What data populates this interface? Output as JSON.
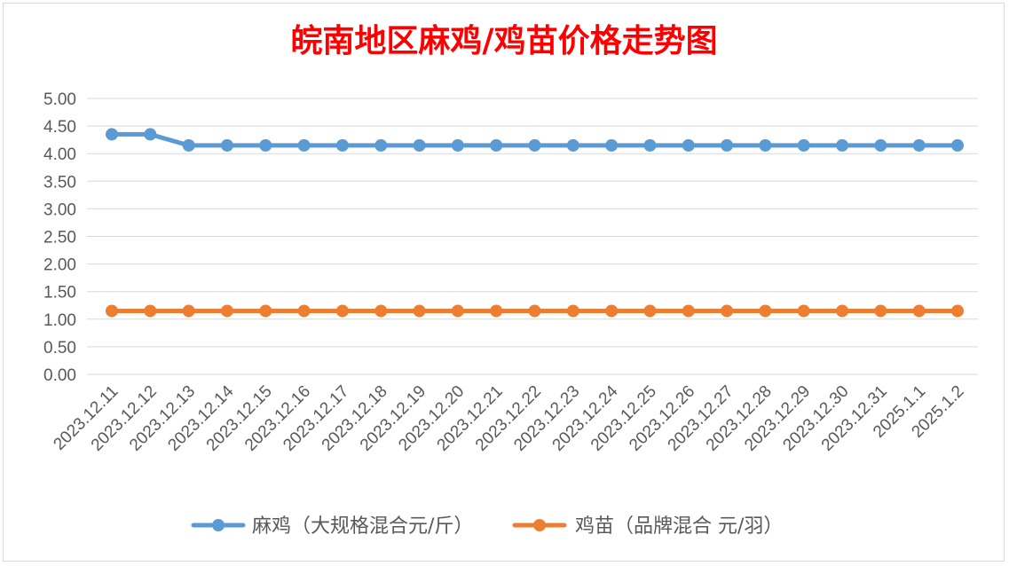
{
  "chart_data": {
    "type": "line",
    "title": "皖南地区麻鸡/鸡苗价格走势图",
    "categories": [
      "2023.12.11",
      "2023.12.12",
      "2023.12.13",
      "2023.12.14",
      "2023.12.15",
      "2023.12.16",
      "2023.12.17",
      "2023.12.18",
      "2023.12.19",
      "2023.12.20",
      "2023.12.21",
      "2023.12.22",
      "2023.12.23",
      "2023.12.24",
      "2023.12.25",
      "2023.12.26",
      "2023.12.27",
      "2023.12.28",
      "2023.12.29",
      "2023.12.30",
      "2023.12.31",
      "2025.1.1",
      "2025.1.2"
    ],
    "series": [
      {
        "name": "麻鸡（大规格混合元/斤）",
        "color": "#5b9bd5",
        "values": [
          4.35,
          4.35,
          4.15,
          4.15,
          4.15,
          4.15,
          4.15,
          4.15,
          4.15,
          4.15,
          4.15,
          4.15,
          4.15,
          4.15,
          4.15,
          4.15,
          4.15,
          4.15,
          4.15,
          4.15,
          4.15,
          4.15,
          4.15
        ]
      },
      {
        "name": "鸡苗（品牌混合 元/羽）",
        "color": "#ed7d31",
        "values": [
          1.15,
          1.15,
          1.15,
          1.15,
          1.15,
          1.15,
          1.15,
          1.15,
          1.15,
          1.15,
          1.15,
          1.15,
          1.15,
          1.15,
          1.15,
          1.15,
          1.15,
          1.15,
          1.15,
          1.15,
          1.15,
          1.15,
          1.15
        ]
      }
    ],
    "ylim": [
      0,
      5
    ],
    "yticks": [
      "0.00",
      "0.50",
      "1.00",
      "1.50",
      "2.00",
      "2.50",
      "3.00",
      "3.50",
      "4.00",
      "4.50",
      "5.00"
    ],
    "title_color": "#ff0000",
    "grid": true,
    "legend_position": "bottom"
  }
}
